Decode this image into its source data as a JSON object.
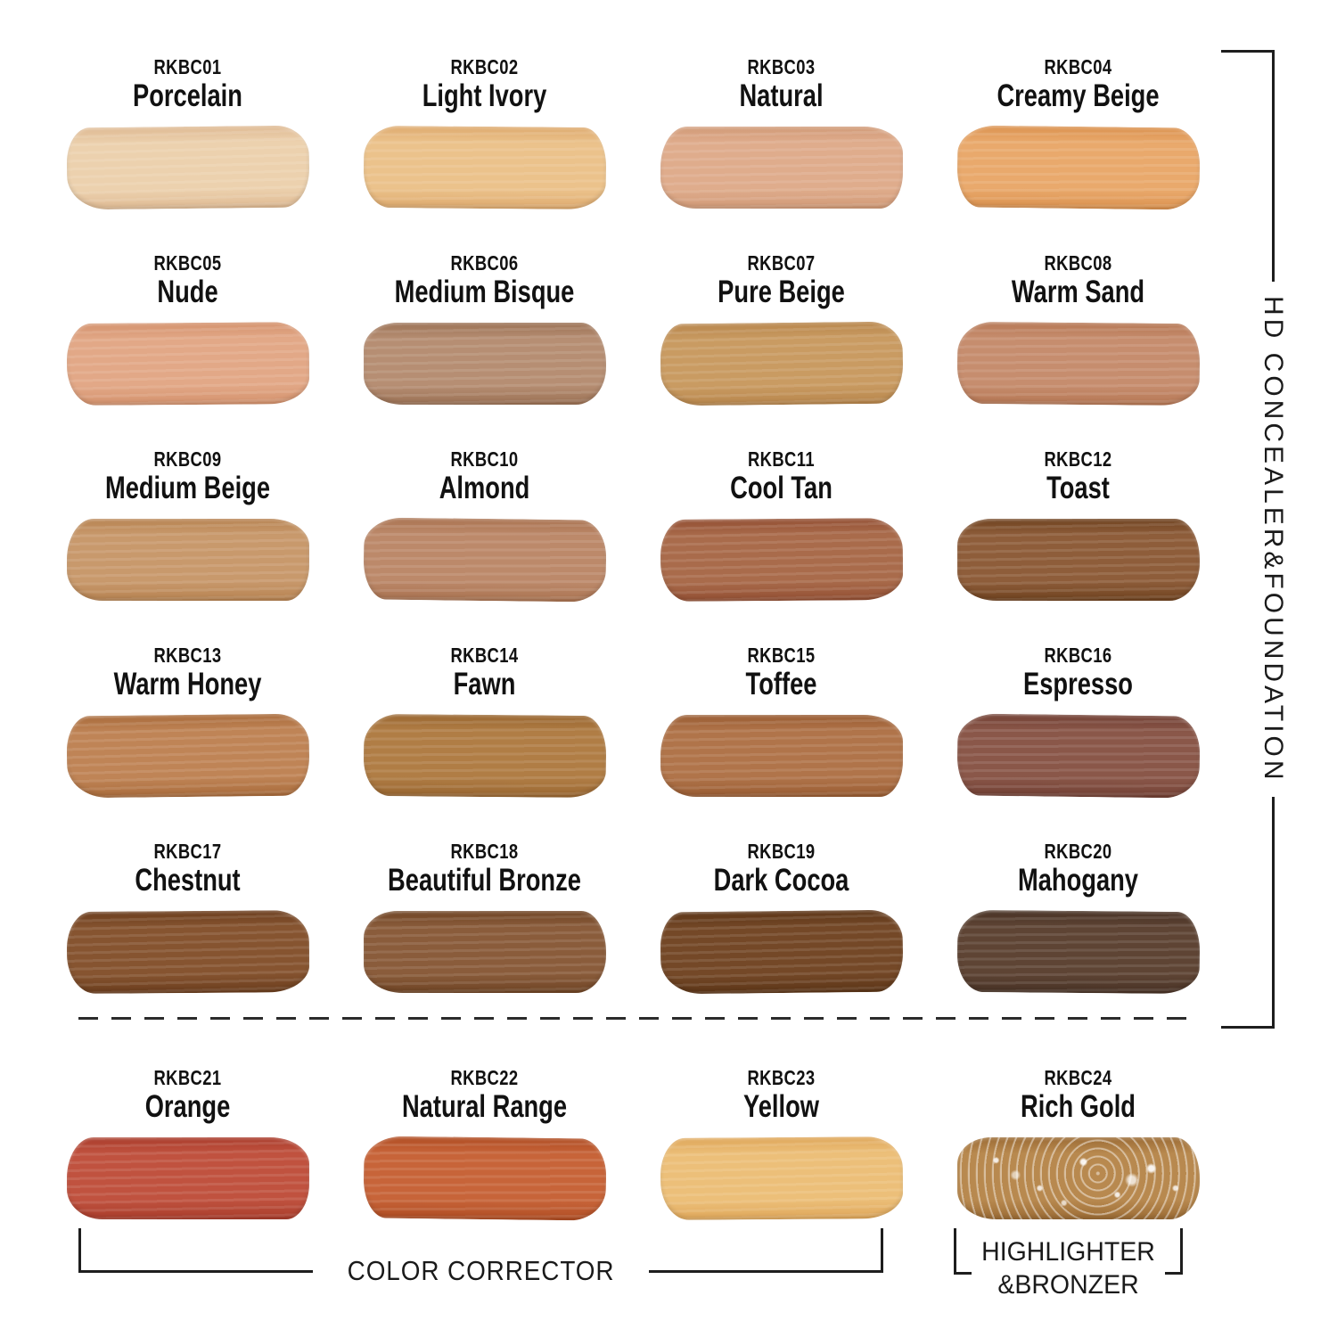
{
  "section_labels": {
    "right": "HD CONCEALER&FOUNDATION",
    "color_corrector": "COLOR CORRECTOR",
    "highlighter_line1": "HIGHLIGHTER",
    "highlighter_line2": "&BRONZER"
  },
  "swatches": [
    {
      "code": "RKBC01",
      "name": "Porcelain",
      "color": "#ecd1ae",
      "edge": "#dfba93"
    },
    {
      "code": "RKBC02",
      "name": "Light Ivory",
      "color": "#ebc28b",
      "edge": "#deaa6e"
    },
    {
      "code": "RKBC03",
      "name": "Natural",
      "color": "#dfac8c",
      "edge": "#d19a77"
    },
    {
      "code": "RKBC04",
      "name": "Creamy Beige",
      "color": "#e9a96c",
      "edge": "#db924f"
    },
    {
      "code": "RKBC05",
      "name": "Nude",
      "color": "#e2a887",
      "edge": "#d4926d"
    },
    {
      "code": "RKBC06",
      "name": "Medium Bisque",
      "color": "#b68e73",
      "edge": "#9b7154"
    },
    {
      "code": "RKBC07",
      "name": "Pure Beige",
      "color": "#c99b62",
      "edge": "#b8864c"
    },
    {
      "code": "RKBC08",
      "name": "Warm Sand",
      "color": "#c68d6e",
      "edge": "#b67754"
    },
    {
      "code": "RKBC09",
      "name": "Medium Beige",
      "color": "#c8996c",
      "edge": "#b78351"
    },
    {
      "code": "RKBC10",
      "name": "Almond",
      "color": "#bc896a",
      "edge": "#aa7351"
    },
    {
      "code": "RKBC11",
      "name": "Cool Tan",
      "color": "#a96b4b",
      "edge": "#934f33"
    },
    {
      "code": "RKBC12",
      "name": "Toast",
      "color": "#8e5d3a",
      "edge": "#6f421f"
    },
    {
      "code": "RKBC13",
      "name": "Warm Honey",
      "color": "#bf8456",
      "edge": "#a96b3b"
    },
    {
      "code": "RKBC14",
      "name": "Fawn",
      "color": "#b07d45",
      "edge": "#996630"
    },
    {
      "code": "RKBC15",
      "name": "Toffee",
      "color": "#b0744a",
      "edge": "#995c32"
    },
    {
      "code": "RKBC16",
      "name": "Espresso",
      "color": "#8a5749",
      "edge": "#724034"
    },
    {
      "code": "RKBC17",
      "name": "Chestnut",
      "color": "#865430",
      "edge": "#6b3d1d"
    },
    {
      "code": "RKBC18",
      "name": "Beautiful Bronze",
      "color": "#8a5c3b",
      "edge": "#6f4424"
    },
    {
      "code": "RKBC19",
      "name": "Dark Cocoa",
      "color": "#744827",
      "edge": "#5c3517"
    },
    {
      "code": "RKBC20",
      "name": "Mahogany",
      "color": "#5e4434",
      "edge": "#483225"
    },
    {
      "code": "RKBC21",
      "name": "Orange",
      "color": "#c0523f",
      "edge": "#aa3d2c"
    },
    {
      "code": "RKBC22",
      "name": "Natural Range",
      "color": "#c76439",
      "edge": "#b04d23"
    },
    {
      "code": "RKBC23",
      "name": "Yellow",
      "color": "#ecbf79",
      "edge": "#dfa75a"
    },
    {
      "code": "RKBC24",
      "name": "Rich Gold",
      "color": "#b8894f",
      "edge": "#9c6c35",
      "sparkle": true
    }
  ]
}
